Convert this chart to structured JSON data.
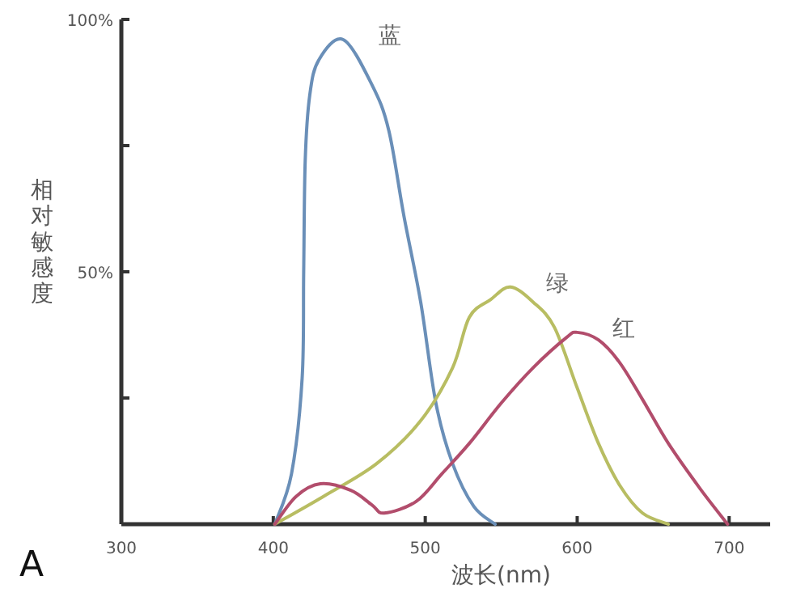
{
  "chart_data": {
    "type": "line",
    "xlabel": "波长(nm)",
    "ylabel": "相对敏感度",
    "annotations": [
      "A"
    ],
    "xlim": [
      300,
      727
    ],
    "xticks": [
      300,
      400,
      500,
      600,
      700
    ],
    "ylim": [
      0,
      100
    ],
    "yticks": [
      {
        "value": 25,
        "label": null
      },
      {
        "value": 50,
        "label": "50%"
      },
      {
        "value": 75,
        "label": null
      },
      {
        "value": 100,
        "label": "100%"
      }
    ],
    "grid": false,
    "legend": false,
    "marker": "none",
    "line_style": "solid",
    "series": [
      {
        "name": "蓝",
        "color": "#6a8fb8",
        "x": [
          401,
          412,
          419,
          420,
          421,
          424,
          430,
          446,
          465,
          476,
          486,
          497,
          507,
          518,
          532,
          546
        ],
        "values": [
          0,
          10,
          29,
          50,
          72,
          85,
          92,
          96,
          87,
          78,
          61,
          44,
          24,
          12,
          3.5,
          0
        ]
      },
      {
        "name": "绿",
        "color": "#b8bd62",
        "x": [
          401,
          433,
          468,
          497,
          518,
          529,
          543,
          556,
          571,
          585,
          600,
          614,
          628,
          643,
          660
        ],
        "values": [
          0,
          5.5,
          12,
          20.5,
          31,
          41,
          44.5,
          47,
          44,
          39,
          27,
          16,
          7.7,
          2.2,
          0
        ]
      },
      {
        "name": "红",
        "color": "#b24d6c",
        "x": [
          401,
          415,
          431,
          451,
          465,
          473,
          494,
          511,
          529,
          550,
          571,
          593,
          600,
          614,
          628,
          643,
          660,
          681,
          699
        ],
        "values": [
          0,
          5.5,
          8,
          6.7,
          3.8,
          2.2,
          4.5,
          10,
          16,
          24,
          31,
          37,
          38,
          36.5,
          32,
          24.7,
          16,
          7,
          0
        ]
      }
    ]
  }
}
